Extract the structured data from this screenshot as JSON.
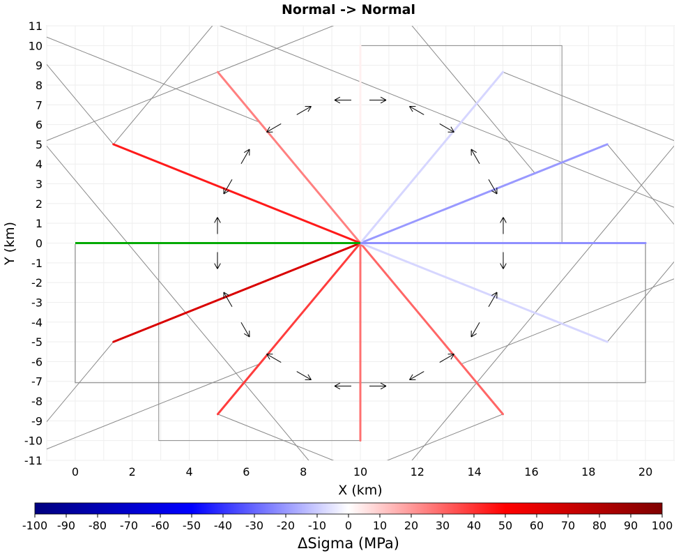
{
  "chart_data": {
    "type": "line",
    "title": "Normal -> Normal",
    "xlabel": "X (km)",
    "ylabel": "Y (km)",
    "xlim": [
      -1,
      21
    ],
    "ylim": [
      -11,
      11
    ],
    "x_ticks": [
      "0",
      "2",
      "4",
      "6",
      "8",
      "10",
      "12",
      "14",
      "16",
      "18",
      "20"
    ],
    "y_ticks": [
      "-11",
      "-10",
      "-9",
      "-8",
      "-7",
      "-6",
      "-5",
      "-4",
      "-3",
      "-2",
      "-1",
      "0",
      "1",
      "2",
      "3",
      "4",
      "5",
      "6",
      "7",
      "8",
      "9",
      "10",
      "11"
    ],
    "grid": true,
    "source_fault": {
      "x": [
        0,
        10
      ],
      "y": [
        0,
        0
      ],
      "color": "#00aa00",
      "outline": {
        "x": [
          0,
          20,
          20,
          0,
          0
        ],
        "y": [
          0,
          0,
          -7.07,
          -7.07,
          0
        ]
      }
    },
    "receiver_faults": [
      {
        "angle": 30,
        "x": [
          10,
          18.66
        ],
        "y": [
          0,
          5
        ],
        "dsigma": -20
      },
      {
        "angle": 60,
        "x": [
          10,
          15
        ],
        "y": [
          0,
          8.66
        ],
        "dsigma": -8
      },
      {
        "angle": 90,
        "x": [
          10,
          10
        ],
        "y": [
          0,
          10
        ],
        "dsigma": 3
      },
      {
        "angle": 120,
        "x": [
          10,
          5
        ],
        "y": [
          0,
          8.66
        ],
        "dsigma": 25
      },
      {
        "angle": 150,
        "x": [
          10,
          1.34
        ],
        "y": [
          0,
          5
        ],
        "dsigma": 45
      },
      {
        "angle": 180,
        "x": [
          10,
          0
        ],
        "y": [
          0,
          0
        ],
        "dsigma": 0
      },
      {
        "angle": 210,
        "x": [
          10,
          1.34
        ],
        "y": [
          0,
          -5
        ],
        "dsigma": 65
      },
      {
        "angle": 240,
        "x": [
          10,
          5
        ],
        "y": [
          0,
          -8.66
        ],
        "dsigma": 38
      },
      {
        "angle": 270,
        "x": [
          10,
          10
        ],
        "y": [
          0,
          -10
        ],
        "dsigma": 28
      },
      {
        "angle": 300,
        "x": [
          10,
          15
        ],
        "y": [
          0,
          -8.66
        ],
        "dsigma": 30
      },
      {
        "angle": 330,
        "x": [
          10,
          18.66
        ],
        "y": [
          0,
          -5
        ],
        "dsigma": -8
      },
      {
        "angle": 0,
        "x": [
          10,
          20
        ],
        "y": [
          0,
          0
        ],
        "dsigma": -22
      }
    ],
    "fault_plane_outlines": [
      {
        "x": [
          10,
          17.07,
          17.07,
          10,
          10
        ],
        "y": [
          0,
          0,
          10,
          10,
          0
        ]
      },
      {
        "x": [
          10,
          10,
          2.93,
          2.93,
          10
        ],
        "y": [
          0,
          -10,
          -10,
          0,
          0
        ]
      },
      {
        "x": [
          10,
          5,
          -1.12,
          3.88,
          10
        ],
        "y": [
          0,
          8.66,
          5.12,
          -3.54,
          0
        ]
      },
      {
        "x": [
          10,
          1.34,
          -2.2,
          6.46,
          10
        ],
        "y": [
          0,
          5,
          11.12,
          6.12,
          0
        ]
      },
      {
        "x": [
          10,
          18.66,
          22.2,
          13.54,
          10
        ],
        "y": [
          0,
          5,
          -1.12,
          -6.12,
          0
        ]
      },
      {
        "x": [
          10,
          15,
          21.12,
          16.12,
          10
        ],
        "y": [
          0,
          8.66,
          5.12,
          -3.54,
          0
        ]
      },
      {
        "x": [
          10,
          15,
          8.88,
          3.88,
          10
        ],
        "y": [
          0,
          -8.66,
          -12.2,
          -3.54,
          0
        ]
      },
      {
        "x": [
          10,
          1.34,
          -2.2,
          6.46,
          10
        ],
        "y": [
          0,
          -5,
          -11.12,
          -6.12,
          0
        ]
      },
      {
        "x": [
          10,
          5,
          11.12,
          16.12,
          10
        ],
        "y": [
          0,
          -8.66,
          -12.2,
          -3.54,
          0
        ]
      },
      {
        "x": [
          10,
          5,
          11.12,
          16.12,
          10
        ],
        "y": [
          0,
          8.66,
          12.2,
          3.54,
          0
        ]
      },
      {
        "x": [
          10,
          18.66,
          22.2,
          13.54,
          10
        ],
        "y": [
          0,
          -5,
          1.12,
          6.12,
          0
        ]
      },
      {
        "x": [
          10,
          1.34,
          4.88,
          13.54,
          10
        ],
        "y": [
          0,
          5,
          11.12,
          6.12,
          0
        ]
      }
    ],
    "arrow_pairs": [
      {
        "angle": 0
      },
      {
        "angle": 30
      },
      {
        "angle": 60
      },
      {
        "angle": 90
      },
      {
        "angle": 120
      },
      {
        "angle": 150
      },
      {
        "angle": 180
      },
      {
        "angle": 210
      },
      {
        "angle": 240
      },
      {
        "angle": 270
      },
      {
        "angle": 300
      },
      {
        "angle": 330
      }
    ],
    "colorbar": {
      "label": "ΔSigma (MPa)",
      "min": -100,
      "max": 100,
      "ticks": [
        "-100",
        "-90",
        "-80",
        "-70",
        "-60",
        "-50",
        "-40",
        "-30",
        "-20",
        "-10",
        "0",
        "10",
        "20",
        "30",
        "40",
        "50",
        "60",
        "70",
        "80",
        "90",
        "100"
      ],
      "stops": [
        "#00007f",
        "#0000ff",
        "#ffffff",
        "#ff0000",
        "#7f0000"
      ]
    }
  }
}
